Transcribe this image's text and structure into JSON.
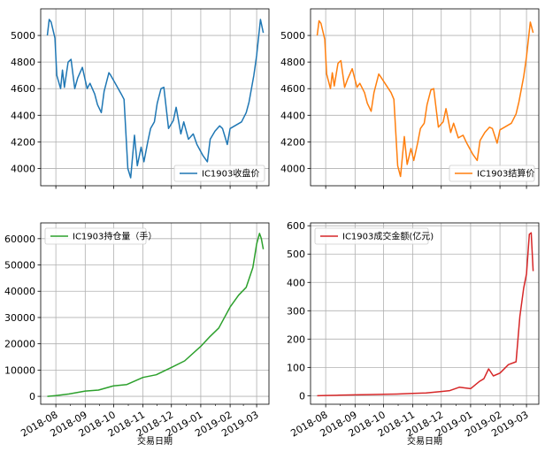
{
  "figure": {
    "xlabel": "交易日期"
  },
  "x_ticks": [
    "2018-08",
    "2018-09",
    "2018-10",
    "2018-11",
    "2018-12",
    "2019-01",
    "2019-02",
    "2019-03"
  ],
  "chart_data": [
    {
      "type": "line",
      "legend": "IC1903收盘价",
      "legend_loc": "lower right",
      "color": "#1f77b4",
      "grid": true,
      "xlim": [
        "2018-07-16",
        "2019-03-14"
      ],
      "ylim": [
        3870,
        5200
      ],
      "yticks": [
        4000,
        4200,
        4400,
        4600,
        4800,
        5000
      ],
      "x": [
        "2018-07-23",
        "2018-07-25",
        "2018-07-27",
        "2018-07-31",
        "2018-08-02",
        "2018-08-06",
        "2018-08-08",
        "2018-08-10",
        "2018-08-14",
        "2018-08-17",
        "2018-08-21",
        "2018-08-24",
        "2018-08-29",
        "2018-09-03",
        "2018-09-06",
        "2018-09-11",
        "2018-09-14",
        "2018-09-18",
        "2018-09-21",
        "2018-09-26",
        "2018-09-28",
        "2018-10-09",
        "2018-10-12",
        "2018-10-16",
        "2018-10-19",
        "2018-10-23",
        "2018-10-26",
        "2018-10-30",
        "2018-11-02",
        "2018-11-06",
        "2018-11-09",
        "2018-11-13",
        "2018-11-16",
        "2018-11-20",
        "2018-11-23",
        "2018-11-28",
        "2018-12-03",
        "2018-12-06",
        "2018-12-11",
        "2018-12-14",
        "2018-12-19",
        "2018-12-24",
        "2018-12-28",
        "2019-01-03",
        "2019-01-08",
        "2019-01-11",
        "2019-01-16",
        "2019-01-21",
        "2019-01-24",
        "2019-01-29",
        "2019-02-01",
        "2019-02-13",
        "2019-02-18",
        "2019-02-21",
        "2019-02-26",
        "2019-03-01",
        "2019-03-05",
        "2019-03-08"
      ],
      "values": [
        5000,
        5120,
        5100,
        4980,
        4700,
        4600,
        4740,
        4610,
        4800,
        4820,
        4600,
        4680,
        4760,
        4600,
        4640,
        4560,
        4480,
        4420,
        4580,
        4720,
        4700,
        4560,
        4520,
        4000,
        3930,
        4250,
        4020,
        4160,
        4050,
        4200,
        4300,
        4350,
        4490,
        4600,
        4610,
        4300,
        4360,
        4460,
        4260,
        4350,
        4220,
        4260,
        4180,
        4100,
        4050,
        4220,
        4280,
        4320,
        4300,
        4180,
        4300,
        4350,
        4420,
        4500,
        4700,
        4850,
        5120,
        5020
      ]
    },
    {
      "type": "line",
      "legend": "IC1903结算价",
      "legend_loc": "lower right",
      "color": "#ff7f0e",
      "grid": true,
      "xlim": [
        "2018-07-16",
        "2019-03-14"
      ],
      "ylim": [
        3870,
        5200
      ],
      "yticks": [
        4000,
        4200,
        4400,
        4600,
        4800,
        5000
      ],
      "x": [
        "2018-07-23",
        "2018-07-25",
        "2018-07-27",
        "2018-07-31",
        "2018-08-02",
        "2018-08-06",
        "2018-08-08",
        "2018-08-10",
        "2018-08-14",
        "2018-08-17",
        "2018-08-21",
        "2018-08-24",
        "2018-08-29",
        "2018-09-03",
        "2018-09-06",
        "2018-09-11",
        "2018-09-14",
        "2018-09-18",
        "2018-09-21",
        "2018-09-26",
        "2018-09-28",
        "2018-10-09",
        "2018-10-12",
        "2018-10-16",
        "2018-10-19",
        "2018-10-23",
        "2018-10-26",
        "2018-10-30",
        "2018-11-02",
        "2018-11-06",
        "2018-11-09",
        "2018-11-13",
        "2018-11-16",
        "2018-11-20",
        "2018-11-23",
        "2018-11-28",
        "2018-12-03",
        "2018-12-06",
        "2018-12-11",
        "2018-12-14",
        "2018-12-19",
        "2018-12-24",
        "2018-12-28",
        "2019-01-03",
        "2019-01-08",
        "2019-01-11",
        "2019-01-16",
        "2019-01-21",
        "2019-01-24",
        "2019-01-29",
        "2019-02-01",
        "2019-02-13",
        "2019-02-18",
        "2019-02-21",
        "2019-02-26",
        "2019-03-01",
        "2019-03-05",
        "2019-03-08"
      ],
      "values": [
        5000,
        5110,
        5090,
        4970,
        4710,
        4600,
        4720,
        4620,
        4790,
        4810,
        4610,
        4670,
        4750,
        4610,
        4640,
        4570,
        4490,
        4430,
        4570,
        4710,
        4690,
        4570,
        4520,
        4020,
        3940,
        4240,
        4030,
        4150,
        4060,
        4190,
        4300,
        4340,
        4480,
        4590,
        4600,
        4310,
        4350,
        4450,
        4270,
        4340,
        4230,
        4250,
        4190,
        4110,
        4060,
        4210,
        4270,
        4310,
        4300,
        4190,
        4290,
        4340,
        4410,
        4500,
        4690,
        4840,
        5100,
        5020
      ]
    },
    {
      "type": "line",
      "legend": "IC1903持仓量（手）",
      "legend_loc": "upper left",
      "color": "#2ca02c",
      "grid": true,
      "xlim": [
        "2018-07-16",
        "2019-03-14"
      ],
      "ylim": [
        -3000,
        66000
      ],
      "yticks": [
        0,
        10000,
        20000,
        30000,
        40000,
        50000,
        60000
      ],
      "x": [
        "2018-07-23",
        "2018-08-01",
        "2018-08-15",
        "2018-09-01",
        "2018-09-15",
        "2018-10-01",
        "2018-10-15",
        "2018-11-01",
        "2018-11-15",
        "2018-12-01",
        "2018-12-15",
        "2019-01-01",
        "2019-01-10",
        "2019-01-20",
        "2019-02-01",
        "2019-02-10",
        "2019-02-18",
        "2019-02-25",
        "2019-03-01",
        "2019-03-04",
        "2019-03-06",
        "2019-03-08"
      ],
      "values": [
        0,
        300,
        900,
        2000,
        2400,
        4000,
        4500,
        7200,
        8200,
        11000,
        13500,
        19000,
        22500,
        26000,
        34000,
        38500,
        41500,
        49000,
        58000,
        62000,
        60000,
        56000
      ]
    },
    {
      "type": "line",
      "legend": "IC1903成交金额(亿元)",
      "legend_loc": "upper left",
      "color": "#d62728",
      "grid": true,
      "xlim": [
        "2018-07-16",
        "2019-03-14"
      ],
      "ylim": [
        -30,
        610
      ],
      "yticks": [
        0,
        100,
        200,
        300,
        400,
        500,
        600
      ],
      "x": [
        "2018-07-23",
        "2018-08-01",
        "2018-08-15",
        "2018-09-01",
        "2018-09-15",
        "2018-10-01",
        "2018-10-15",
        "2018-11-01",
        "2018-11-15",
        "2018-12-01",
        "2018-12-10",
        "2018-12-20",
        "2019-01-01",
        "2019-01-10",
        "2019-01-15",
        "2019-01-20",
        "2019-01-25",
        "2019-02-01",
        "2019-02-10",
        "2019-02-18",
        "2019-02-22",
        "2019-02-26",
        "2019-03-01",
        "2019-03-04",
        "2019-03-06",
        "2019-03-08"
      ],
      "values": [
        0,
        1,
        2,
        3,
        4,
        5,
        6,
        8,
        10,
        15,
        18,
        30,
        25,
        50,
        60,
        95,
        70,
        80,
        110,
        120,
        280,
        380,
        430,
        570,
        575,
        440
      ]
    }
  ]
}
